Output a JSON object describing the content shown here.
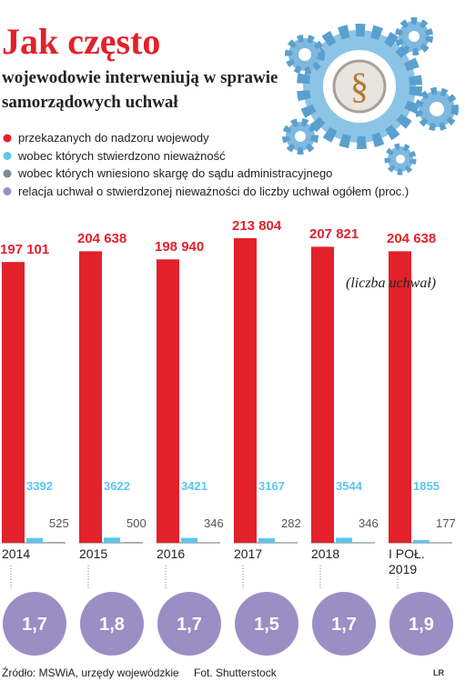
{
  "chart_data": {
    "type": "bar",
    "title": "Jak często",
    "subtitle": "wojewodowie interweniują w sprawie samorządowych uchwał",
    "annotation": "(liczba uchwał)",
    "categories": [
      "2014",
      "2015",
      "2016",
      "2017",
      "2018",
      "I POŁ. 2019"
    ],
    "series": [
      {
        "name": "przekazanych do nadzoru wojewody",
        "color": "#e3212b",
        "values": [
          197101,
          204638,
          198940,
          213804,
          207821,
          204638
        ],
        "value_labels": [
          "197 101",
          "204 638",
          "198 940",
          "213 804",
          "207 821",
          "204 638"
        ]
      },
      {
        "name": "wobec których stwierdzono nieważność",
        "color": "#5cc6ee",
        "values": [
          3392,
          3622,
          3421,
          3167,
          3544,
          1855
        ]
      },
      {
        "name": "wobec których wniesiono skargę do sądu administracyjnego",
        "color": "#7b8a97",
        "values": [
          525,
          500,
          346,
          282,
          346,
          177
        ]
      },
      {
        "name": "relacja uchwał o stwierdzonej nieważności do liczby uchwał ogółem (proc.)",
        "color": "#9b8ec4",
        "values": [
          1.7,
          1.8,
          1.7,
          1.5,
          1.7,
          1.9
        ],
        "value_labels": [
          "1,7",
          "1,8",
          "1,7",
          "1,5",
          "1,7",
          "1,9"
        ]
      }
    ],
    "source": "Źródło: MSWiA, urzędy wojewódzkie",
    "credit": "Fot. Shutterstock",
    "logo": "LR"
  }
}
